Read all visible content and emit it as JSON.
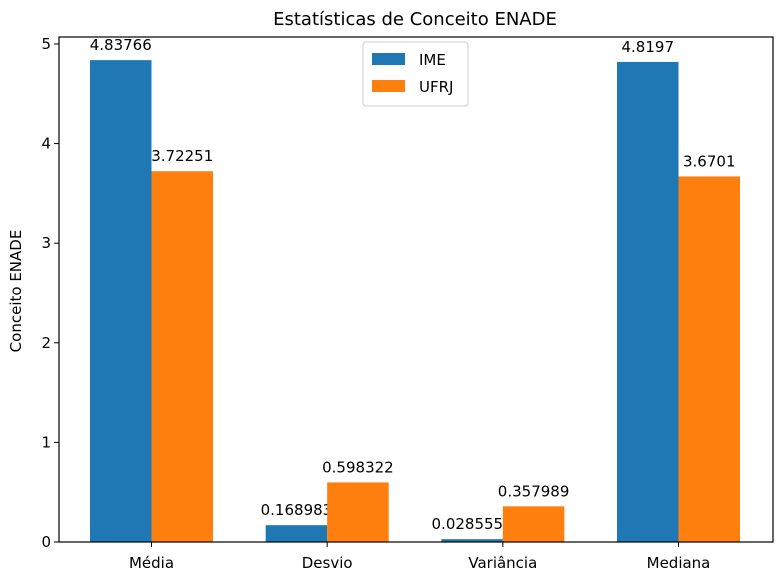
{
  "chart_data": {
    "type": "bar",
    "title": "Estatísticas de Conceito ENADE",
    "xlabel": "",
    "ylabel": "Conceito ENADE",
    "categories": [
      "Média",
      "Desvio",
      "Variância",
      "Mediana"
    ],
    "series": [
      {
        "name": "IME",
        "color": "#1f77b4",
        "values": [
          4.83766,
          0.168983,
          0.0285552,
          4.8197
        ],
        "labels": [
          "4.83766",
          "0.168983",
          "0.0285552",
          "4.8197"
        ]
      },
      {
        "name": "UFRJ",
        "color": "#ff7f0e",
        "values": [
          3.72251,
          0.598322,
          0.357989,
          3.6701
        ],
        "labels": [
          "3.72251",
          "0.598322",
          "0.357989",
          "3.6701"
        ]
      }
    ],
    "ylim": [
      0,
      5.07
    ],
    "yticks": [
      0,
      1,
      2,
      3,
      4,
      5
    ],
    "legend": "upper center",
    "grid": false
  }
}
